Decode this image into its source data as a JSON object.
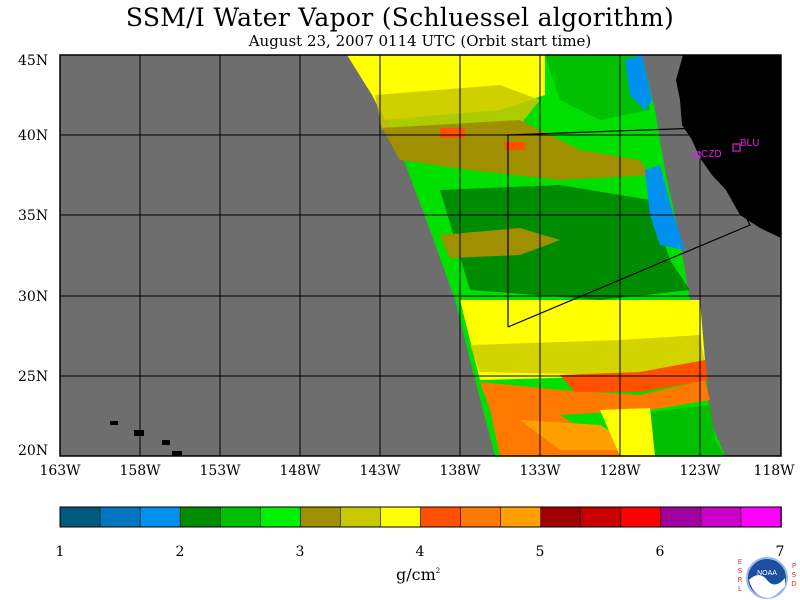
{
  "header": {
    "title": "SSM/I Water Vapor (Schluessel algorithm)",
    "subtitle": "August 23, 2007  0114 UTC  (Orbit start time)"
  },
  "map": {
    "lat_labels": [
      "45N",
      "40N",
      "35N",
      "30N",
      "25N",
      "20N"
    ],
    "lon_labels": [
      "163W",
      "158W",
      "153W",
      "148W",
      "143W",
      "138W",
      "133W",
      "128W",
      "123W",
      "118W"
    ],
    "stations": [
      {
        "code": "CZD",
        "color": "#e020e0"
      },
      {
        "code": "BLU",
        "color": "#e020e0"
      }
    ],
    "colors": {
      "background_no_data": "#6e6e6e",
      "land": "#000000",
      "grid": "#000000"
    }
  },
  "colorbar": {
    "ticks": [
      "1",
      "2",
      "3",
      "4",
      "5",
      "6",
      "7"
    ],
    "units": "g/cm",
    "units_sup": "2",
    "bins": [
      "#005a7e",
      "#0075c0",
      "#0090f0",
      "#008c00",
      "#00c000",
      "#00f000",
      "#a09000",
      "#c8c800",
      "#ffff00",
      "#ff5000",
      "#ff7800",
      "#ffa000",
      "#a00000",
      "#c80000",
      "#ff0000",
      "#a000a0",
      "#c800c8",
      "#ff00ff"
    ]
  },
  "logo": {
    "left_letters": "ESRL",
    "right_letters": "PSD",
    "badge": "NOAA"
  }
}
